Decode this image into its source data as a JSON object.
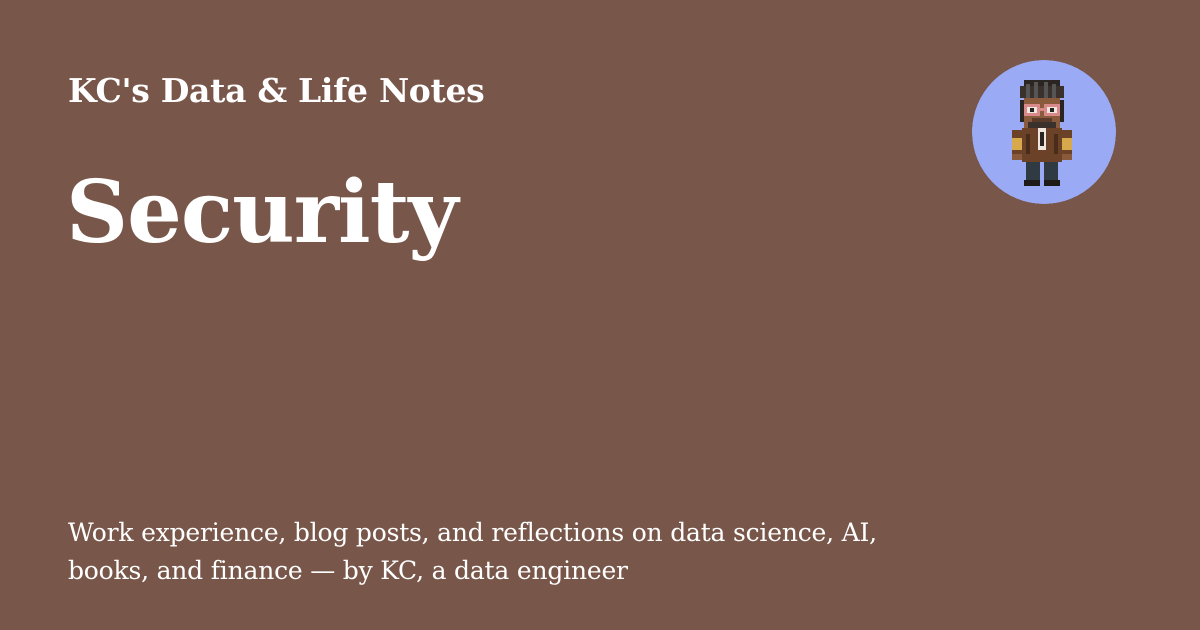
{
  "site": {
    "name": "KC's Data & Life Notes"
  },
  "page": {
    "title": "Security",
    "description": "Work experience, blog posts, and reflections on data science, AI, books, and finance — by KC, a data engineer"
  },
  "avatar": {
    "icon": "pixel-art-character-avatar",
    "background_color": "#9aaaf5"
  },
  "theme": {
    "background_color": "#78574a",
    "text_color": "#ffffff"
  }
}
